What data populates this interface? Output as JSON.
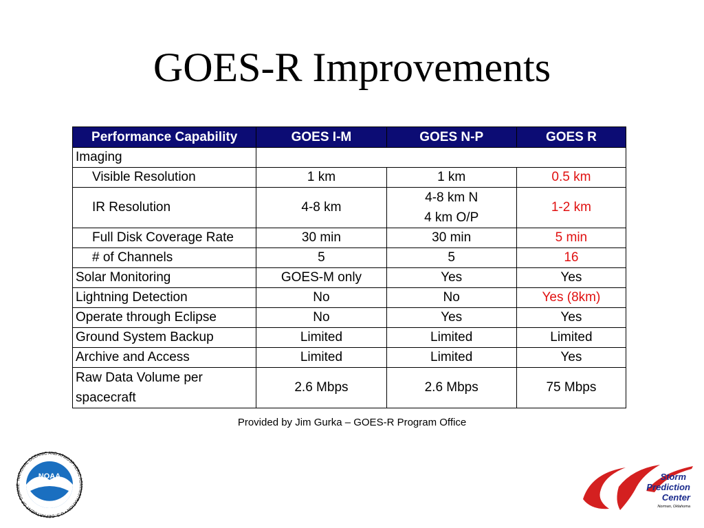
{
  "slide": {
    "title": "GOES-R Improvements",
    "credit": "Provided by Jim Gurka – GOES-R Program Office"
  },
  "table": {
    "headers": [
      "Performance Capability",
      "GOES I-M",
      "GOES N-P",
      "GOES R"
    ],
    "section": "Imaging",
    "rows": [
      {
        "label": "Visible Resolution",
        "im": "1 km",
        "np": "1 km",
        "r": "0.5 km",
        "r_highlight": true
      },
      {
        "label": "IR Resolution",
        "im": "4-8 km",
        "np_line1": "4-8 km N",
        "np_line2": "4 km O/P",
        "r": "1-2 km",
        "r_highlight": true
      },
      {
        "label": "Full Disk Coverage Rate",
        "im": "30 min",
        "np": "30 min",
        "r": "5 min",
        "r_highlight": true
      },
      {
        "label": "# of Channels",
        "im": "5",
        "np": "5",
        "r": "16",
        "r_highlight": true
      },
      {
        "label": "Solar Monitoring",
        "im": "GOES-M only",
        "np": "Yes",
        "r": "Yes",
        "r_highlight": false
      },
      {
        "label": "Lightning Detection",
        "im": "No",
        "np": "No",
        "r": "Yes (8km)",
        "r_highlight": true
      },
      {
        "label": "Operate through Eclipse",
        "im": "No",
        "np": "Yes",
        "r": "Yes",
        "r_highlight": false
      },
      {
        "label": "Ground System Backup",
        "im": "Limited",
        "np": "Limited",
        "r": "Limited",
        "r_highlight": false
      },
      {
        "label": "Archive and Access",
        "im": "Limited",
        "np": "Limited",
        "r": "Yes",
        "r_highlight": false
      },
      {
        "label_line1": "Raw Data Volume per",
        "label_line2": "spacecraft",
        "im": "2.6 Mbps",
        "np": "2.6 Mbps",
        "r": "75 Mbps",
        "r_highlight": false
      }
    ]
  },
  "logos": {
    "noaa": {
      "text": "NOAA",
      "ring_text": "NATIONAL OCEANIC AND ATMOSPHERIC ADMINISTRATION • U.S. DEPARTMENT OF COMMERCE",
      "icon": "noaa-seagull-logo"
    },
    "spc": {
      "line1": "Storm",
      "line2": "Prediction",
      "line3": "Center",
      "line4": "Norman, Oklahoma",
      "icon": "spc-swoosh-logo"
    }
  },
  "colors": {
    "header_bg": "#0c0c74",
    "header_text": "#ffffff",
    "highlight": "#e01010",
    "spc_red": "#d42020",
    "spc_blue": "#1a2a8c",
    "noaa_blue": "#1a6fc0"
  }
}
